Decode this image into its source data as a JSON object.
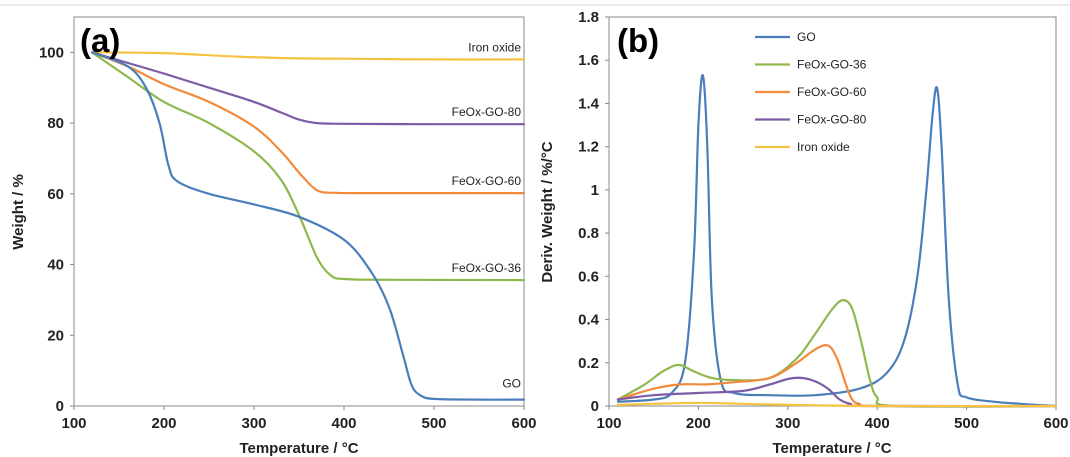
{
  "colors": {
    "GO": "#4a7ebb",
    "FeOx-GO-36": "#8fb84f",
    "FeOx-GO-60": "#f28a3c",
    "FeOx-GO-80": "#7d5ca6",
    "Iron oxide": "#f5c242"
  },
  "chart_data": [
    {
      "type": "line",
      "panel_label": "(a)",
      "xlabel": "Temperature / °C",
      "ylabel": "Weight / %",
      "xlim": [
        100,
        600
      ],
      "ylim": [
        0,
        110
      ],
      "xticks": [
        "100",
        "200",
        "300",
        "400",
        "500",
        "600"
      ],
      "yticks": [
        "0",
        "20",
        "40",
        "60",
        "80",
        "100"
      ],
      "grid": false,
      "legend": "inline labels at right",
      "series": [
        {
          "name": "Iron oxide",
          "label": "Iron  oxide",
          "x": [
            120,
            200,
            280,
            350,
            400,
            500,
            600
          ],
          "y": [
            100,
            99.8,
            98.8,
            98.3,
            98.2,
            98.0,
            98.0
          ]
        },
        {
          "name": "FeOx-GO-80",
          "label": "FeOx-GO-80",
          "x": [
            120,
            160,
            200,
            250,
            300,
            330,
            350,
            370,
            400,
            500,
            600
          ],
          "y": [
            100,
            97,
            94,
            90,
            86,
            83,
            81,
            80,
            79.8,
            79.7,
            79.7
          ]
        },
        {
          "name": "FeOx-GO-60",
          "label": "FeOx-GO-60",
          "x": [
            120,
            160,
            200,
            250,
            300,
            330,
            350,
            370,
            390,
            420,
            500,
            600
          ],
          "y": [
            100,
            96,
            91,
            86,
            79,
            72,
            66,
            61,
            60.3,
            60.2,
            60.2,
            60.2
          ]
        },
        {
          "name": "FeOx-GO-36",
          "label": "FeOx-GO-36",
          "x": [
            120,
            160,
            200,
            250,
            300,
            330,
            350,
            370,
            385,
            400,
            450,
            600
          ],
          "y": [
            100,
            93,
            86,
            80,
            72,
            64,
            54,
            42,
            37,
            35.9,
            35.7,
            35.6
          ]
        },
        {
          "name": "GO",
          "label": "GO",
          "x": [
            120,
            160,
            180,
            195,
            205,
            215,
            250,
            300,
            350,
            400,
            430,
            450,
            465,
            475,
            485,
            500,
            550,
            600
          ],
          "y": [
            100,
            96,
            90,
            80,
            68,
            63.5,
            60,
            57,
            53.5,
            47,
            38,
            28,
            15,
            6,
            3,
            2,
            1.8,
            1.8
          ]
        }
      ]
    },
    {
      "type": "line",
      "panel_label": "(b)",
      "xlabel": "Temperature / °C",
      "ylabel": "Deriv. Weight / %/°C",
      "xlim": [
        100,
        600
      ],
      "ylim": [
        0,
        1.8
      ],
      "xticks": [
        "100",
        "200",
        "300",
        "400",
        "500",
        "600"
      ],
      "yticks": [
        "0",
        "0.2",
        "0.4",
        "0.6",
        "0.8",
        "1",
        "1.2",
        "1.4",
        "1.6",
        "1.8"
      ],
      "grid": false,
      "legend": "top-center",
      "series": [
        {
          "name": "GO",
          "x": [
            110,
            150,
            170,
            185,
            195,
            200,
            205,
            210,
            215,
            225,
            240,
            280,
            330,
            380,
            410,
            430,
            445,
            455,
            462,
            467,
            472,
            480,
            490,
            500,
            530,
            560,
            600
          ],
          "y": [
            0.02,
            0.03,
            0.06,
            0.2,
            0.7,
            1.3,
            1.53,
            1.2,
            0.5,
            0.12,
            0.06,
            0.05,
            0.05,
            0.08,
            0.15,
            0.3,
            0.6,
            1.0,
            1.35,
            1.47,
            1.2,
            0.5,
            0.1,
            0.04,
            0.02,
            0.01,
            0.0
          ]
        },
        {
          "name": "FeOx-GO-36",
          "x": [
            110,
            140,
            160,
            178,
            195,
            215,
            240,
            280,
            310,
            330,
            350,
            362,
            372,
            382,
            392,
            400,
            420,
            600
          ],
          "y": [
            0.03,
            0.1,
            0.16,
            0.19,
            0.16,
            0.13,
            0.12,
            0.13,
            0.22,
            0.33,
            0.45,
            0.49,
            0.45,
            0.3,
            0.12,
            0.04,
            0.0,
            0.0
          ]
        },
        {
          "name": "FeOx-GO-60",
          "x": [
            110,
            150,
            180,
            210,
            240,
            280,
            310,
            330,
            345,
            355,
            365,
            372,
            380,
            400,
            600
          ],
          "y": [
            0.03,
            0.08,
            0.1,
            0.1,
            0.11,
            0.13,
            0.2,
            0.26,
            0.28,
            0.22,
            0.1,
            0.03,
            0.01,
            0.0,
            0.0
          ]
        },
        {
          "name": "FeOx-GO-80",
          "x": [
            110,
            150,
            200,
            250,
            280,
            300,
            315,
            330,
            345,
            358,
            370,
            390,
            600
          ],
          "y": [
            0.03,
            0.05,
            0.06,
            0.07,
            0.1,
            0.125,
            0.13,
            0.115,
            0.08,
            0.03,
            0.01,
            0.0,
            0.0
          ]
        },
        {
          "name": "Iron oxide",
          "x": [
            110,
            150,
            200,
            250,
            300,
            350,
            400,
            600
          ],
          "y": [
            0.005,
            0.01,
            0.015,
            0.01,
            0.005,
            0.002,
            0.0,
            0.0
          ]
        }
      ]
    }
  ]
}
